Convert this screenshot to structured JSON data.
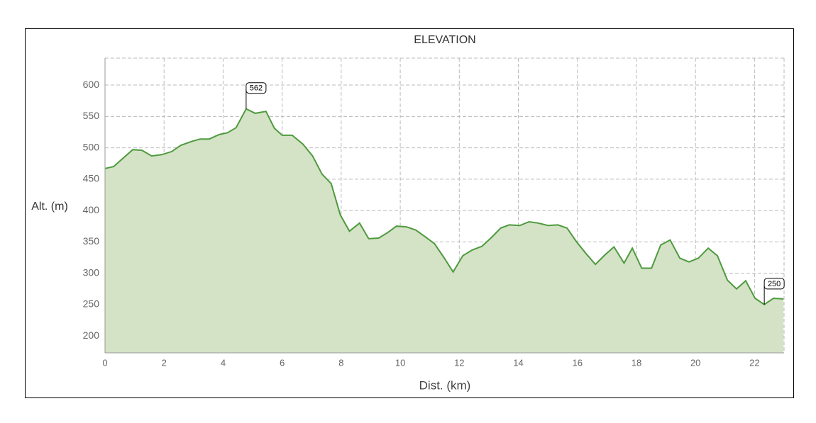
{
  "chart_data": {
    "type": "area",
    "title": "ELEVATION",
    "x_label": "Dist. (km)",
    "y_label": "Alt. (m)",
    "x": [
      0,
      0.29,
      0.94,
      1.25,
      1.58,
      1.92,
      2.26,
      2.57,
      2.93,
      3.22,
      3.53,
      3.86,
      4.15,
      4.44,
      4.78,
      5.09,
      5.45,
      5.74,
      6.0,
      6.34,
      6.7,
      7.03,
      7.35,
      7.66,
      7.97,
      8.28,
      8.62,
      8.93,
      9.27,
      9.58,
      9.87,
      10.2,
      10.52,
      10.85,
      11.16,
      11.48,
      11.79,
      12.12,
      12.44,
      12.77,
      13.09,
      13.4,
      13.69,
      14.05,
      14.36,
      14.67,
      15.01,
      15.34,
      15.65,
      15.97,
      16.28,
      16.61,
      16.93,
      17.24,
      17.58,
      17.86,
      18.18,
      18.51,
      18.82,
      19.14,
      19.47,
      19.78,
      20.1,
      20.43,
      20.74,
      21.08,
      21.39,
      21.7,
      22.02,
      22.33,
      22.64,
      22.98
    ],
    "values": [
      467,
      470,
      497,
      496,
      487,
      489,
      494,
      504,
      510,
      514,
      514,
      521,
      524,
      532,
      562,
      555,
      558,
      531,
      520,
      520,
      506,
      487,
      458,
      443,
      393,
      367,
      380,
      355,
      356,
      365,
      375,
      374,
      369,
      358,
      347,
      325,
      302,
      328,
      337,
      343,
      357,
      372,
      377,
      376,
      382,
      380,
      376,
      377,
      372,
      350,
      332,
      314,
      329,
      342,
      316,
      340,
      308,
      308,
      345,
      353,
      324,
      318,
      324,
      340,
      328,
      289,
      275,
      288,
      260,
      250,
      260,
      259
    ],
    "color": "#4e9a3e",
    "fill": "#d4e2c6",
    "xlim": [
      0,
      23
    ],
    "xticks": [
      0,
      2,
      4,
      6,
      8,
      10,
      12,
      14,
      16,
      18,
      20,
      22
    ],
    "ylim": [
      173,
      643
    ],
    "yticks": [
      200,
      250,
      300,
      350,
      400,
      450,
      500,
      550,
      600
    ],
    "grid": true,
    "annotations": [
      {
        "x": 4.78,
        "y": 562
      },
      {
        "x": 22.33,
        "y": 250
      }
    ]
  }
}
